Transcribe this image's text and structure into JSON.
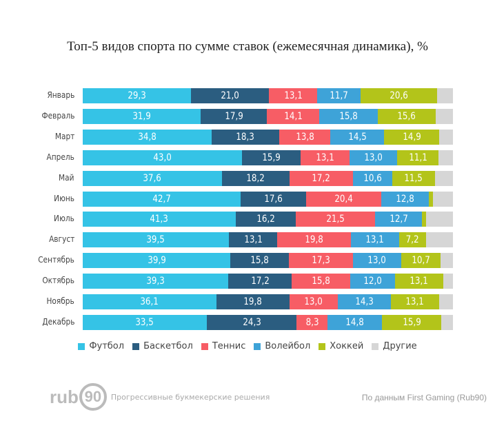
{
  "chart_data": {
    "type": "bar",
    "orientation": "horizontal-stacked-100",
    "title": "Топ-5 видов спорта по сумме ставок (ежемесячная динамика), %",
    "categories": [
      "Январь",
      "Февраль",
      "Март",
      "Апрель",
      "Май",
      "Июнь",
      "Июль",
      "Август",
      "Сентябрь",
      "Октябрь",
      "Ноябрь",
      "Декабрь"
    ],
    "series": [
      {
        "name": "Футбол",
        "color": "#35c3e6",
        "values": [
          29.3,
          31.9,
          34.8,
          43.0,
          37.6,
          42.7,
          41.3,
          39.5,
          39.9,
          39.3,
          36.1,
          33.5
        ]
      },
      {
        "name": "Баскетбол",
        "color": "#2b5d80",
        "values": [
          21.0,
          17.9,
          18.3,
          15.9,
          18.2,
          17.6,
          16.2,
          13.1,
          15.8,
          17.2,
          19.8,
          24.3
        ]
      },
      {
        "name": "Теннис",
        "color": "#f75d65",
        "values": [
          13.1,
          14.1,
          13.8,
          13.1,
          17.2,
          20.4,
          21.5,
          19.8,
          17.3,
          15.8,
          13.0,
          8.3
        ]
      },
      {
        "name": "Волейбол",
        "color": "#3ea3d8",
        "values": [
          11.7,
          15.8,
          14.5,
          13.0,
          10.6,
          12.8,
          12.7,
          13.1,
          13.0,
          12.0,
          14.3,
          14.8
        ]
      },
      {
        "name": "Хоккей",
        "color": "#b3c41a",
        "values": [
          20.6,
          15.6,
          14.9,
          11.1,
          11.5,
          1.1,
          1.0,
          7.2,
          10.7,
          13.1,
          13.1,
          15.9
        ]
      },
      {
        "name": "Другие",
        "color": "#d6d6d6",
        "values": [
          4.3,
          4.7,
          3.7,
          3.9,
          4.9,
          5.4,
          7.3,
          7.3,
          3.3,
          2.6,
          3.7,
          3.2
        ]
      }
    ],
    "label_min": 5,
    "xlim": [
      0,
      100
    ]
  },
  "footer": {
    "logo": "rub90",
    "tagline": "Прогрессивные букмекерские решения",
    "source": "По данным First Gaming (Rub90)"
  }
}
